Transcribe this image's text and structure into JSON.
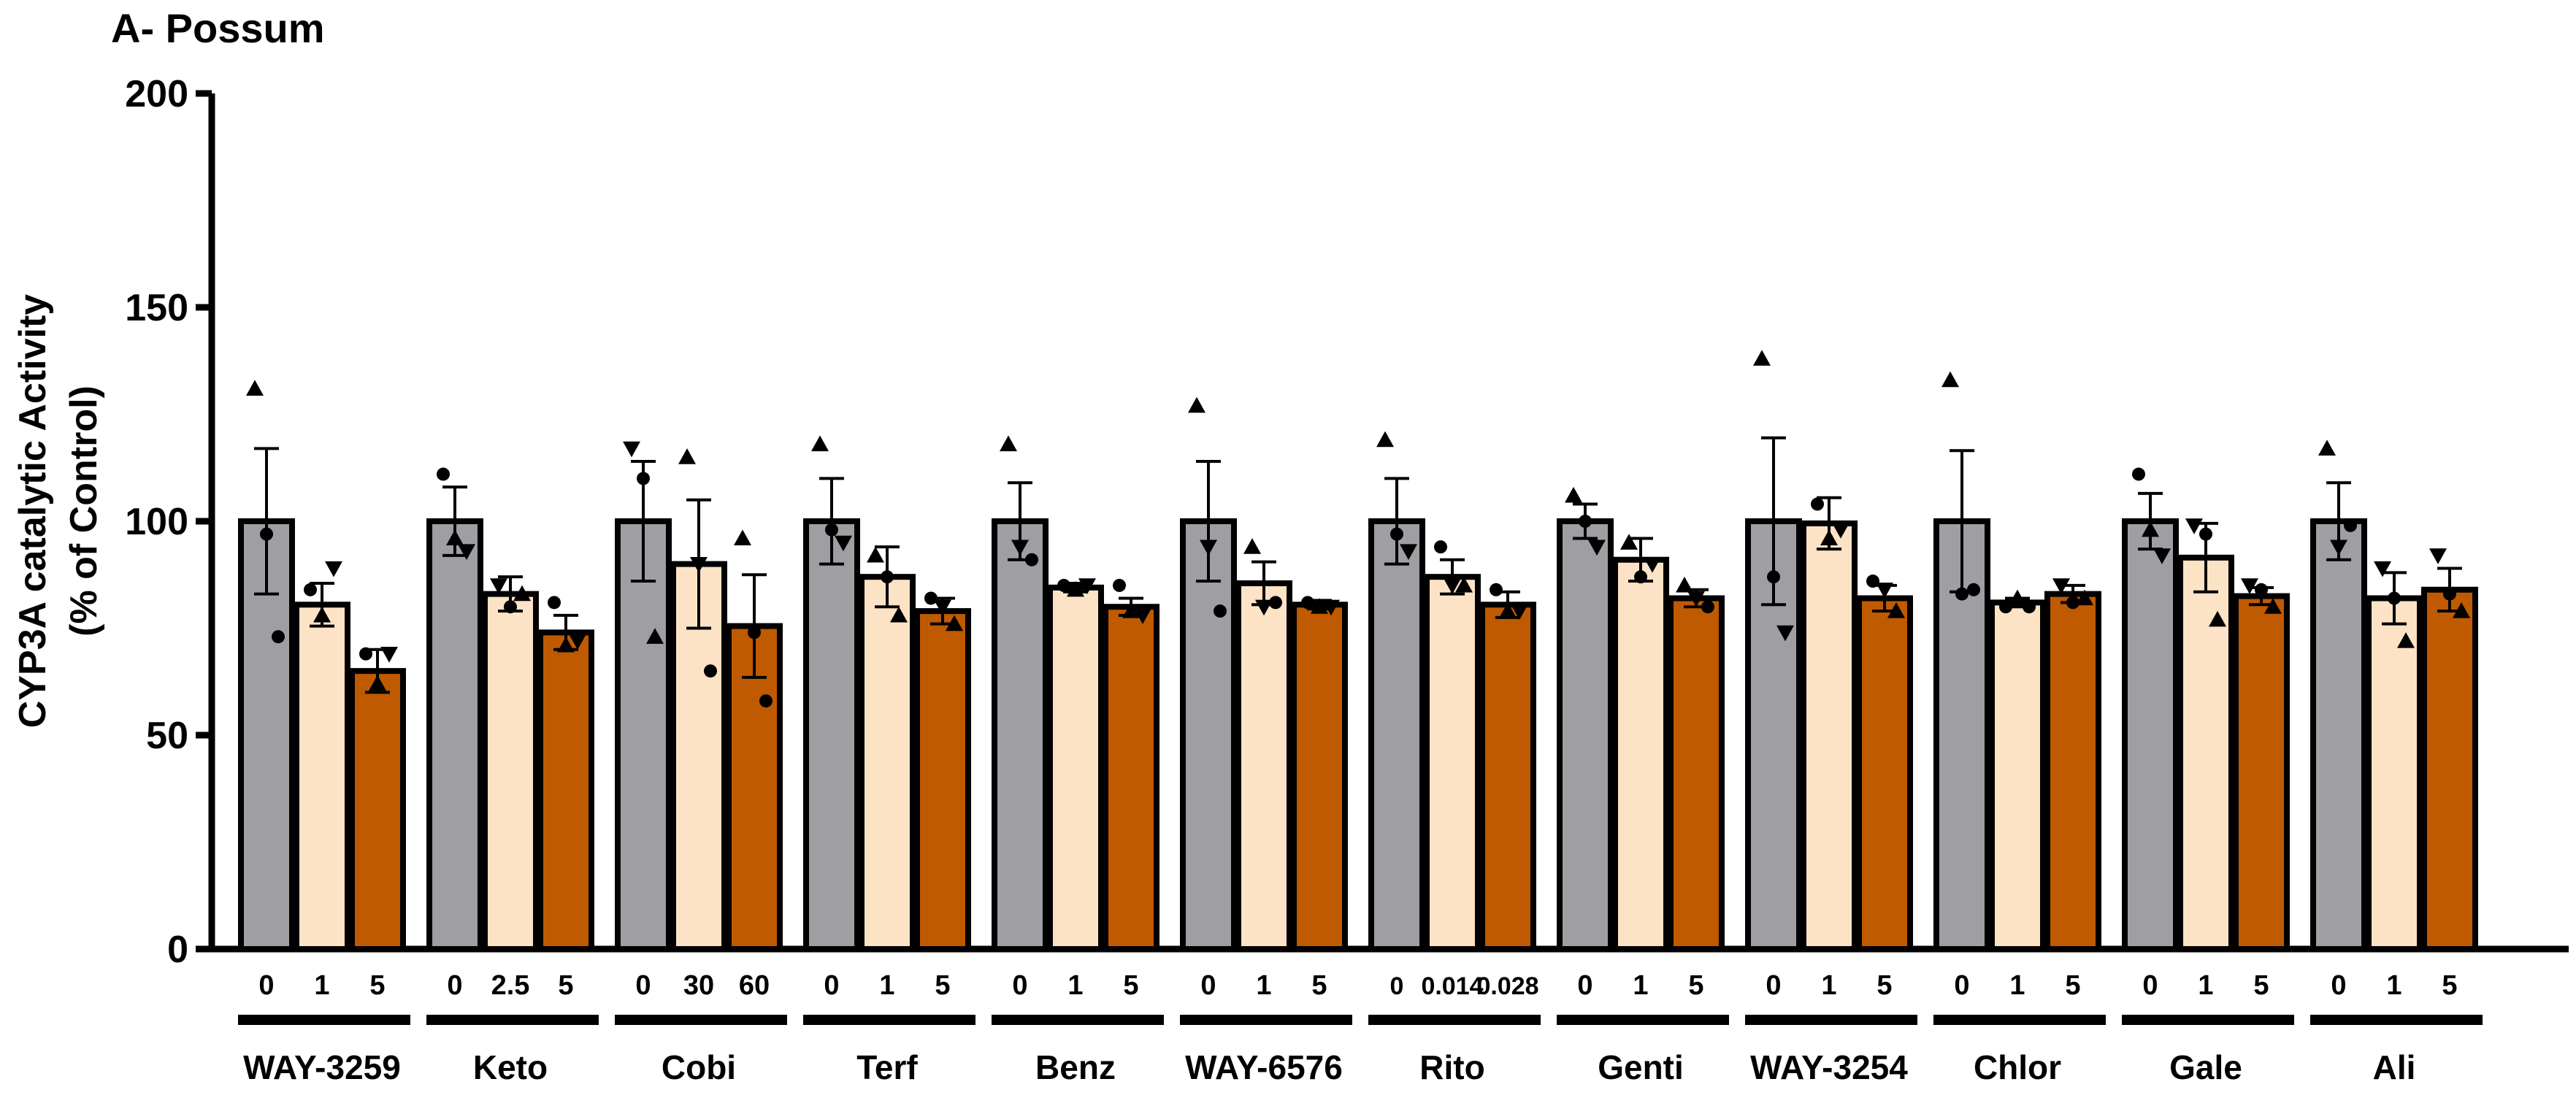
{
  "chart_data": {
    "type": "bar",
    "title": "A- Possum",
    "ylabel_line1": "CYP3A catalytic Activity",
    "ylabel_line2": "(% of Control)",
    "ylim": [
      0,
      200
    ],
    "yticks": [
      "0",
      "50",
      "100",
      "150",
      "200"
    ],
    "ytick_values": [
      0,
      50,
      100,
      150,
      200
    ],
    "series_colors": [
      "#9e9ea3",
      "#fde3c6",
      "#c05a00"
    ],
    "groups": [
      {
        "name": "WAY-3259",
        "doses": [
          "0",
          "1",
          "5"
        ],
        "means": [
          100,
          80.5,
          65
        ],
        "errors": [
          17,
          5,
          5
        ],
        "points": [
          [
            {
              "v": 131,
              "m": "tri"
            },
            {
              "v": 97,
              "m": "dot"
            },
            {
              "v": 73,
              "m": "dot"
            }
          ],
          [
            {
              "v": 84,
              "m": "dot"
            },
            {
              "v": 78,
              "m": "tri"
            },
            {
              "v": 89,
              "m": "tri_down"
            }
          ],
          [
            {
              "v": 69,
              "m": "dot"
            },
            {
              "v": 62,
              "m": "tri"
            },
            {
              "v": 69,
              "m": "tri_down"
            }
          ]
        ]
      },
      {
        "name": "Keto",
        "doses": [
          "0",
          "2.5",
          "5"
        ],
        "means": [
          100,
          83,
          74
        ],
        "errors": [
          8,
          4,
          4
        ],
        "points": [
          [
            {
              "v": 111,
              "m": "dot"
            },
            {
              "v": 96,
              "m": "tri"
            },
            {
              "v": 93,
              "m": "tri_down"
            }
          ],
          [
            {
              "v": 85,
              "m": "tri_down"
            },
            {
              "v": 80,
              "m": "dot"
            },
            {
              "v": 83,
              "m": "tri"
            }
          ],
          [
            {
              "v": 81,
              "m": "dot"
            },
            {
              "v": 71,
              "m": "tri"
            },
            {
              "v": 72,
              "m": "tri_down"
            }
          ]
        ]
      },
      {
        "name": "Cobi",
        "doses": [
          "0",
          "30",
          "60"
        ],
        "means": [
          100,
          90,
          75.5
        ],
        "errors": [
          14,
          15,
          12
        ],
        "points": [
          [
            {
              "v": 117,
              "m": "tri_down"
            },
            {
              "v": 110,
              "m": "dot"
            },
            {
              "v": 73,
              "m": "tri"
            }
          ],
          [
            {
              "v": 115,
              "m": "tri"
            },
            {
              "v": 90,
              "m": "tri_down"
            },
            {
              "v": 65,
              "m": "dot"
            }
          ],
          [
            {
              "v": 96,
              "m": "tri"
            },
            {
              "v": 74,
              "m": "dot"
            },
            {
              "v": 58,
              "m": "dot"
            }
          ]
        ]
      },
      {
        "name": "Terf",
        "doses": [
          "0",
          "1",
          "5"
        ],
        "means": [
          100,
          87,
          79
        ],
        "errors": [
          10,
          7,
          3
        ],
        "points": [
          [
            {
              "v": 118,
              "m": "tri"
            },
            {
              "v": 98,
              "m": "dot"
            },
            {
              "v": 95,
              "m": "tri_down"
            }
          ],
          [
            {
              "v": 92,
              "m": "tri"
            },
            {
              "v": 87,
              "m": "dot"
            },
            {
              "v": 78,
              "m": "tri"
            }
          ],
          [
            {
              "v": 82,
              "m": "dot"
            },
            {
              "v": 80,
              "m": "tri_down"
            },
            {
              "v": 76,
              "m": "tri"
            }
          ]
        ]
      },
      {
        "name": "Benz",
        "doses": [
          "0",
          "1",
          "5"
        ],
        "means": [
          100,
          84.5,
          80
        ],
        "errors": [
          9,
          1,
          2
        ],
        "points": [
          [
            {
              "v": 118,
              "m": "tri"
            },
            {
              "v": 94,
              "m": "tri_down"
            },
            {
              "v": 91,
              "m": "dot"
            }
          ],
          [
            {
              "v": 85,
              "m": "dot"
            },
            {
              "v": 84,
              "m": "tri"
            },
            {
              "v": 85,
              "m": "tri_down"
            }
          ],
          [
            {
              "v": 85,
              "m": "dot"
            },
            {
              "v": 79,
              "m": "tri"
            },
            {
              "v": 78,
              "m": "tri_down"
            }
          ]
        ]
      },
      {
        "name": "WAY-6576",
        "doses": [
          "0",
          "1",
          "5"
        ],
        "means": [
          100,
          85.5,
          80.5
        ],
        "errors": [
          14,
          5,
          1
        ],
        "points": [
          [
            {
              "v": 127,
              "m": "tri"
            },
            {
              "v": 94,
              "m": "tri_down"
            },
            {
              "v": 79,
              "m": "dot"
            }
          ],
          [
            {
              "v": 94,
              "m": "tri"
            },
            {
              "v": 80,
              "m": "tri_down"
            },
            {
              "v": 81,
              "m": "dot"
            }
          ],
          [
            {
              "v": 81,
              "m": "dot"
            },
            {
              "v": 80,
              "m": "tri"
            },
            {
              "v": 80,
              "m": "tri_down"
            }
          ]
        ]
      },
      {
        "name": "Rito",
        "doses": [
          "0",
          "0.014",
          "0.028"
        ],
        "means": [
          100,
          87,
          80.5
        ],
        "errors": [
          10,
          4,
          3
        ],
        "points": [
          [
            {
              "v": 119,
              "m": "tri"
            },
            {
              "v": 97,
              "m": "dot"
            },
            {
              "v": 93,
              "m": "tri_down"
            }
          ],
          [
            {
              "v": 94,
              "m": "dot"
            },
            {
              "v": 85,
              "m": "tri_down"
            },
            {
              "v": 85,
              "m": "tri"
            }
          ],
          [
            {
              "v": 84,
              "m": "dot"
            },
            {
              "v": 79,
              "m": "tri"
            },
            {
              "v": 79,
              "m": "tri_down"
            }
          ]
        ]
      },
      {
        "name": "Genti",
        "doses": [
          "0",
          "1",
          "5"
        ],
        "means": [
          100,
          91,
          82
        ],
        "errors": [
          4,
          5,
          2
        ],
        "points": [
          [
            {
              "v": 106,
              "m": "tri"
            },
            {
              "v": 100,
              "m": "dot"
            },
            {
              "v": 94,
              "m": "tri_down"
            }
          ],
          [
            {
              "v": 95,
              "m": "tri"
            },
            {
              "v": 87,
              "m": "dot"
            },
            {
              "v": 90,
              "m": "tri_down"
            }
          ],
          [
            {
              "v": 85,
              "m": "tri"
            },
            {
              "v": 82,
              "m": "tri_down"
            },
            {
              "v": 80,
              "m": "dot"
            }
          ]
        ]
      },
      {
        "name": "WAY-3254",
        "doses": [
          "0",
          "1",
          "5"
        ],
        "means": [
          100,
          99.5,
          82
        ],
        "errors": [
          19.5,
          6,
          3
        ],
        "points": [
          [
            {
              "v": 138,
              "m": "tri"
            },
            {
              "v": 87,
              "m": "dot"
            },
            {
              "v": 74,
              "m": "tri_down"
            }
          ],
          [
            {
              "v": 104,
              "m": "dot"
            },
            {
              "v": 96,
              "m": "tri"
            },
            {
              "v": 98,
              "m": "tri_down"
            }
          ],
          [
            {
              "v": 86,
              "m": "dot"
            },
            {
              "v": 84,
              "m": "tri_down"
            },
            {
              "v": 79,
              "m": "tri"
            }
          ]
        ]
      },
      {
        "name": "Chlor",
        "doses": [
          "0",
          "1",
          "5"
        ],
        "means": [
          100,
          81,
          83
        ],
        "errors": [
          16.5,
          1,
          2
        ],
        "points": [
          [
            {
              "v": 133,
              "m": "tri"
            },
            {
              "v": 83,
              "m": "dot"
            },
            {
              "v": 84,
              "m": "dot"
            }
          ],
          [
            {
              "v": 80,
              "m": "dot"
            },
            {
              "v": 82,
              "m": "tri"
            },
            {
              "v": 80,
              "m": "dot"
            }
          ],
          [
            {
              "v": 85,
              "m": "tri_down"
            },
            {
              "v": 81,
              "m": "dot"
            },
            {
              "v": 82,
              "m": "tri"
            }
          ]
        ]
      },
      {
        "name": "Gale",
        "doses": [
          "0",
          "1",
          "5"
        ],
        "means": [
          100,
          91.5,
          82.5
        ],
        "errors": [
          6.5,
          8,
          2
        ],
        "points": [
          [
            {
              "v": 111,
              "m": "dot"
            },
            {
              "v": 98,
              "m": "tri"
            },
            {
              "v": 92,
              "m": "tri_down"
            }
          ],
          [
            {
              "v": 99,
              "m": "tri_down"
            },
            {
              "v": 97,
              "m": "dot"
            },
            {
              "v": 77,
              "m": "tri"
            }
          ],
          [
            {
              "v": 85,
              "m": "tri_down"
            },
            {
              "v": 84,
              "m": "dot"
            },
            {
              "v": 80,
              "m": "tri"
            }
          ]
        ]
      },
      {
        "name": "Ali",
        "doses": [
          "0",
          "1",
          "5"
        ],
        "means": [
          100,
          82,
          84
        ],
        "errors": [
          9,
          6,
          5
        ],
        "points": [
          [
            {
              "v": 117,
              "m": "tri"
            },
            {
              "v": 94,
              "m": "tri_down"
            },
            {
              "v": 99,
              "m": "dot"
            }
          ],
          [
            {
              "v": 89,
              "m": "tri_down"
            },
            {
              "v": 82,
              "m": "dot"
            },
            {
              "v": 72,
              "m": "tri"
            }
          ],
          [
            {
              "v": 92,
              "m": "tri_down"
            },
            {
              "v": 83,
              "m": "dot"
            },
            {
              "v": 79,
              "m": "tri"
            }
          ]
        ]
      }
    ]
  }
}
